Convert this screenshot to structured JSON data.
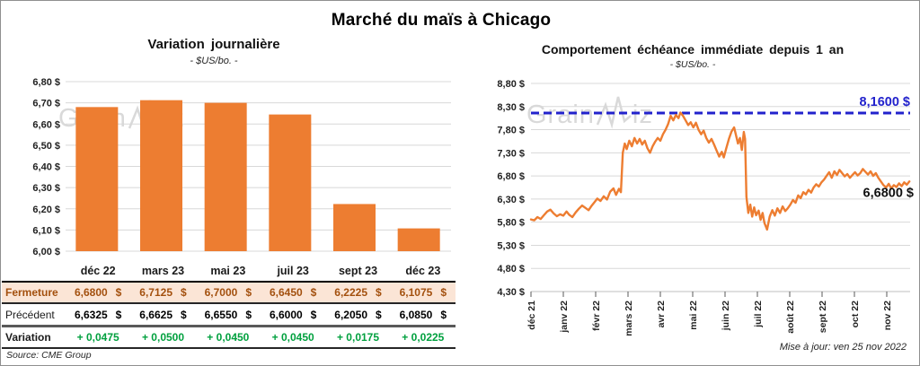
{
  "title": "Marché du maïs à Chicago",
  "watermark": {
    "part1": "Grain",
    "part2": "iz"
  },
  "source_note": "Source: CME Group",
  "update_note": "Mise à jour: ven 25 nov 2022",
  "colors": {
    "bar_orange": "#ed7d31",
    "line_orange": "#ed7d31",
    "ref_blue": "#2222cc",
    "close_row_bg": "#fbe5d6",
    "close_row_text": "#a3500e",
    "variation_green": "#00a03e",
    "gridline": "#d8d8d8"
  },
  "table": {
    "corner_label": "",
    "columns": [
      "déc 22",
      "mars 23",
      "mai 23",
      "juil 23",
      "sept 23",
      "déc 23"
    ],
    "currency": "$",
    "rows": [
      {
        "id": "fermeture",
        "label": "Fermeture",
        "currency": true,
        "values": [
          "6,6800",
          "6,7125",
          "6,7000",
          "6,6450",
          "6,2225",
          "6,1075"
        ]
      },
      {
        "id": "precedent",
        "label": "Précédent",
        "currency": true,
        "values": [
          "6,6325",
          "6,6625",
          "6,6550",
          "6,6000",
          "6,2050",
          "6,0850"
        ]
      },
      {
        "id": "variation",
        "label": "Variation",
        "currency": false,
        "values": [
          "+ 0,0475",
          "+ 0,0500",
          "+ 0,0450",
          "+ 0,0450",
          "+ 0,0175",
          "+ 0,0225"
        ]
      }
    ]
  },
  "chart_data": [
    {
      "type": "bar",
      "title": "Variation journalière",
      "subtitle": "- $US/bo. -",
      "categories": [
        "déc 22",
        "mars 23",
        "mai 23",
        "juil 23",
        "sept 23",
        "déc 23"
      ],
      "values": [
        6.68,
        6.7125,
        6.7,
        6.645,
        6.2225,
        6.1075
      ],
      "ylim": [
        6.0,
        6.8
      ],
      "ytick_step": 0.1,
      "ytick_labels": [
        "6,80 $",
        "6,70 $",
        "6,60 $",
        "6,50 $",
        "6,40 $",
        "6,30 $",
        "6,20 $",
        "6,10 $",
        "6,00 $"
      ],
      "grid": true,
      "legend": "none"
    },
    {
      "type": "line",
      "title": "Comportement échéance immédiate depuis 1 an",
      "subtitle": "- $US/bo. -",
      "ylim": [
        4.3,
        8.8
      ],
      "ytick_step": 0.5,
      "ytick_labels": [
        "8,80 $",
        "8,30 $",
        "7,80 $",
        "7,30 $",
        "6,80 $",
        "6,30 $",
        "5,80 $",
        "5,30 $",
        "4,80 $",
        "4,30 $"
      ],
      "xtick_labels": [
        "déc 21",
        "janv 22",
        "févr 22",
        "mars 22",
        "avr 22",
        "mai 22",
        "juin 22",
        "juil 22",
        "août 22",
        "sept 22",
        "oct 22",
        "nov 22"
      ],
      "ref_line": {
        "value": 8.16,
        "label": "8,1600 $",
        "style": "dashed"
      },
      "last_value": 6.68,
      "last_value_label": "6,6800 $",
      "grid": true,
      "legend": "none",
      "points": [
        [
          0.0,
          5.86
        ],
        [
          0.1,
          5.84
        ],
        [
          0.2,
          5.91
        ],
        [
          0.3,
          5.87
        ],
        [
          0.4,
          5.95
        ],
        [
          0.5,
          6.03
        ],
        [
          0.6,
          6.07
        ],
        [
          0.7,
          5.99
        ],
        [
          0.8,
          5.93
        ],
        [
          0.9,
          5.97
        ],
        [
          1.0,
          5.94
        ],
        [
          1.1,
          6.03
        ],
        [
          1.18,
          5.96
        ],
        [
          1.28,
          5.91
        ],
        [
          1.38,
          6.01
        ],
        [
          1.48,
          6.09
        ],
        [
          1.58,
          6.16
        ],
        [
          1.68,
          6.11
        ],
        [
          1.78,
          6.06
        ],
        [
          1.88,
          6.16
        ],
        [
          1.96,
          6.23
        ],
        [
          2.05,
          6.31
        ],
        [
          2.15,
          6.26
        ],
        [
          2.25,
          6.36
        ],
        [
          2.35,
          6.29
        ],
        [
          2.45,
          6.46
        ],
        [
          2.55,
          6.53
        ],
        [
          2.63,
          6.39
        ],
        [
          2.72,
          6.52
        ],
        [
          2.78,
          6.45
        ],
        [
          2.84,
          7.3
        ],
        [
          2.9,
          7.5
        ],
        [
          2.96,
          7.38
        ],
        [
          3.04,
          7.56
        ],
        [
          3.12,
          7.44
        ],
        [
          3.2,
          7.62
        ],
        [
          3.28,
          7.5
        ],
        [
          3.36,
          7.6
        ],
        [
          3.44,
          7.48
        ],
        [
          3.52,
          7.56
        ],
        [
          3.6,
          7.4
        ],
        [
          3.68,
          7.3
        ],
        [
          3.76,
          7.44
        ],
        [
          3.84,
          7.54
        ],
        [
          3.92,
          7.62
        ],
        [
          4.0,
          7.56
        ],
        [
          4.08,
          7.7
        ],
        [
          4.16,
          7.8
        ],
        [
          4.24,
          7.92
        ],
        [
          4.32,
          8.1
        ],
        [
          4.4,
          8.0
        ],
        [
          4.48,
          8.12
        ],
        [
          4.56,
          8.05
        ],
        [
          4.62,
          8.17
        ],
        [
          4.7,
          8.1
        ],
        [
          4.78,
          8.0
        ],
        [
          4.86,
          7.9
        ],
        [
          4.94,
          7.96
        ],
        [
          5.02,
          7.85
        ],
        [
          5.1,
          7.95
        ],
        [
          5.18,
          7.8
        ],
        [
          5.26,
          7.7
        ],
        [
          5.34,
          7.78
        ],
        [
          5.42,
          7.62
        ],
        [
          5.5,
          7.52
        ],
        [
          5.58,
          7.6
        ],
        [
          5.66,
          7.48
        ],
        [
          5.74,
          7.35
        ],
        [
          5.82,
          7.22
        ],
        [
          5.9,
          7.32
        ],
        [
          5.96,
          7.2
        ],
        [
          6.04,
          7.4
        ],
        [
          6.12,
          7.6
        ],
        [
          6.2,
          7.76
        ],
        [
          6.28,
          7.85
        ],
        [
          6.34,
          7.68
        ],
        [
          6.4,
          7.5
        ],
        [
          6.46,
          7.62
        ],
        [
          6.52,
          7.36
        ],
        [
          6.58,
          7.75
        ],
        [
          6.62,
          7.6
        ],
        [
          6.66,
          6.35
        ],
        [
          6.72,
          6.0
        ],
        [
          6.78,
          6.18
        ],
        [
          6.84,
          5.92
        ],
        [
          6.9,
          6.12
        ],
        [
          6.96,
          5.95
        ],
        [
          7.04,
          6.05
        ],
        [
          7.1,
          5.85
        ],
        [
          7.16,
          6.0
        ],
        [
          7.22,
          5.78
        ],
        [
          7.3,
          5.64
        ],
        [
          7.38,
          5.92
        ],
        [
          7.46,
          6.06
        ],
        [
          7.54,
          5.94
        ],
        [
          7.62,
          6.1
        ],
        [
          7.7,
          6.0
        ],
        [
          7.78,
          6.14
        ],
        [
          7.86,
          6.04
        ],
        [
          7.94,
          6.1
        ],
        [
          8.02,
          6.18
        ],
        [
          8.1,
          6.28
        ],
        [
          8.18,
          6.22
        ],
        [
          8.26,
          6.38
        ],
        [
          8.34,
          6.32
        ],
        [
          8.42,
          6.45
        ],
        [
          8.5,
          6.4
        ],
        [
          8.58,
          6.5
        ],
        [
          8.66,
          6.44
        ],
        [
          8.74,
          6.55
        ],
        [
          8.82,
          6.62
        ],
        [
          8.9,
          6.57
        ],
        [
          8.98,
          6.66
        ],
        [
          9.06,
          6.72
        ],
        [
          9.14,
          6.8
        ],
        [
          9.22,
          6.88
        ],
        [
          9.3,
          6.76
        ],
        [
          9.38,
          6.9
        ],
        [
          9.46,
          6.82
        ],
        [
          9.54,
          6.93
        ],
        [
          9.62,
          6.86
        ],
        [
          9.7,
          6.79
        ],
        [
          9.78,
          6.84
        ],
        [
          9.86,
          6.76
        ],
        [
          9.94,
          6.82
        ],
        [
          10.02,
          6.88
        ],
        [
          10.1,
          6.81
        ],
        [
          10.18,
          6.86
        ],
        [
          10.26,
          6.95
        ],
        [
          10.34,
          6.89
        ],
        [
          10.42,
          6.83
        ],
        [
          10.5,
          6.9
        ],
        [
          10.58,
          6.8
        ],
        [
          10.66,
          6.86
        ],
        [
          10.74,
          6.76
        ],
        [
          10.82,
          6.68
        ],
        [
          10.9,
          6.6
        ],
        [
          10.98,
          6.55
        ],
        [
          11.06,
          6.63
        ],
        [
          11.14,
          6.53
        ],
        [
          11.22,
          6.6
        ],
        [
          11.3,
          6.56
        ],
        [
          11.38,
          6.64
        ],
        [
          11.46,
          6.58
        ],
        [
          11.54,
          6.66
        ],
        [
          11.62,
          6.61
        ],
        [
          11.7,
          6.68
        ]
      ]
    }
  ]
}
